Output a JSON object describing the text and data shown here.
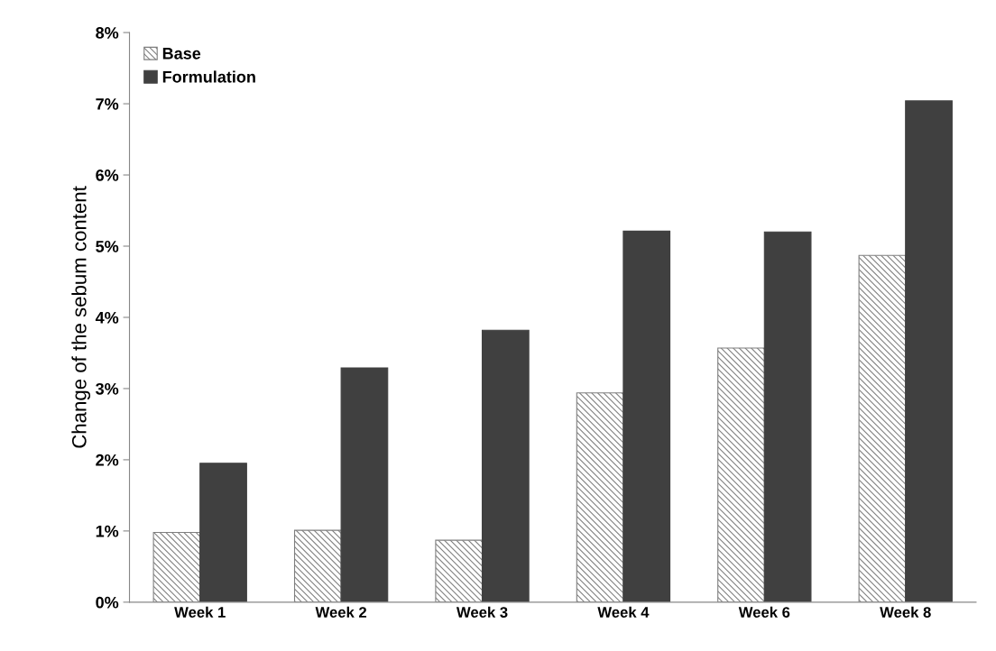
{
  "chart_data": {
    "type": "bar",
    "ylabel": "Change of the sebum content",
    "categories": [
      "Week 1",
      "Week 2",
      "Week 3",
      "Week 4",
      "Week 6",
      "Week 8"
    ],
    "series": [
      {
        "name": "Base",
        "color": "#7f7f7f",
        "values": [
          0.98,
          1.01,
          0.87,
          2.94,
          3.57,
          4.87
        ]
      },
      {
        "name": "Formulation",
        "color": "#404040",
        "values": [
          1.95,
          3.29,
          3.82,
          5.21,
          5.2,
          7.04
        ]
      }
    ],
    "ylim": [
      0,
      8
    ],
    "yticks": [
      {
        "value": 0,
        "label": "0%"
      },
      {
        "value": 1,
        "label": "1%"
      },
      {
        "value": 2,
        "label": "2%"
      },
      {
        "value": 3,
        "label": "3%"
      },
      {
        "value": 4,
        "label": "4%"
      },
      {
        "value": 5,
        "label": "5%"
      },
      {
        "value": 6,
        "label": "6%"
      },
      {
        "value": 7,
        "label": "7%"
      },
      {
        "value": 8,
        "label": "8%"
      }
    ],
    "grid": false,
    "legend": "top left"
  }
}
